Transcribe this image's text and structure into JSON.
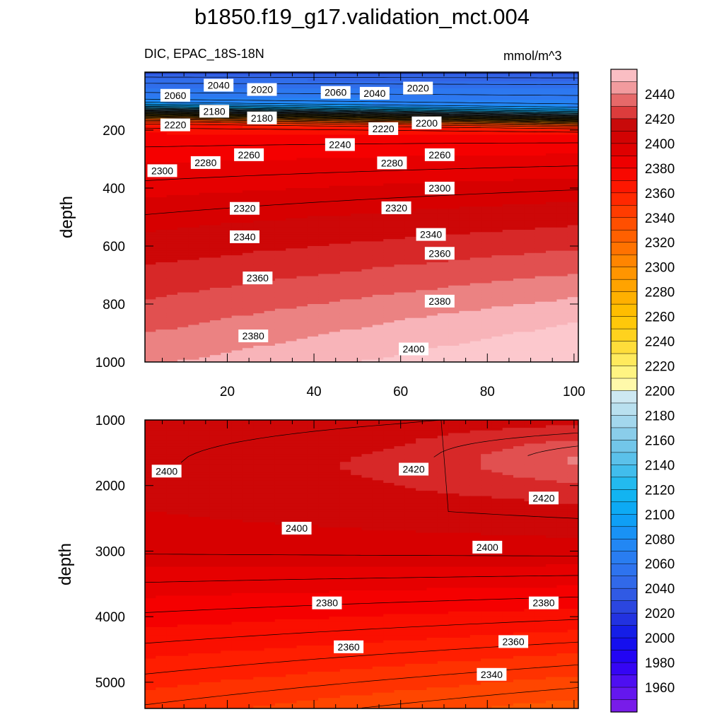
{
  "figure": {
    "title": "b1850.f19_g17.validation_mct.004",
    "variable_label": "DIC, EPAC_18S-18N",
    "units": "mmol/m^3"
  },
  "chart_data": [
    {
      "type": "contour",
      "panel": "upper",
      "xlim": [
        1,
        101
      ],
      "ylim": [
        1000,
        0
      ],
      "ylabel": "depth",
      "x_ticks": [
        20,
        40,
        60,
        80,
        100
      ],
      "x_tick_labels": [
        "20",
        "40",
        "60",
        "80",
        "100"
      ],
      "y_ticks": [
        200,
        400,
        600,
        800,
        1000
      ],
      "y_tick_labels": [
        "200",
        "400",
        "600",
        "800",
        "1000"
      ],
      "contour_labels": [
        {
          "text": "2060",
          "x": 8,
          "y": 80
        },
        {
          "text": "2040",
          "x": 18,
          "y": 45
        },
        {
          "text": "2020",
          "x": 28,
          "y": 60
        },
        {
          "text": "2060",
          "x": 45,
          "y": 70
        },
        {
          "text": "2040",
          "x": 54,
          "y": 73
        },
        {
          "text": "2020",
          "x": 64,
          "y": 55
        },
        {
          "text": "2180",
          "x": 17,
          "y": 135
        },
        {
          "text": "2180",
          "x": 28,
          "y": 158
        },
        {
          "text": "2220",
          "x": 8,
          "y": 182
        },
        {
          "text": "2240",
          "x": 46,
          "y": 250
        },
        {
          "text": "2220",
          "x": 56,
          "y": 195
        },
        {
          "text": "2200",
          "x": 66,
          "y": 175
        },
        {
          "text": "2260",
          "x": 25,
          "y": 285
        },
        {
          "text": "2280",
          "x": 15,
          "y": 312
        },
        {
          "text": "2300",
          "x": 5,
          "y": 340
        },
        {
          "text": "2280",
          "x": 58,
          "y": 313
        },
        {
          "text": "2260",
          "x": 69,
          "y": 285
        },
        {
          "text": "2300",
          "x": 69,
          "y": 400
        },
        {
          "text": "2320",
          "x": 24,
          "y": 470
        },
        {
          "text": "2320",
          "x": 59,
          "y": 468
        },
        {
          "text": "2340",
          "x": 24,
          "y": 568
        },
        {
          "text": "2340",
          "x": 67,
          "y": 560
        },
        {
          "text": "2360",
          "x": 27,
          "y": 710
        },
        {
          "text": "2360",
          "x": 69,
          "y": 625
        },
        {
          "text": "2380",
          "x": 69,
          "y": 790
        },
        {
          "text": "2380",
          "x": 26,
          "y": 910
        },
        {
          "text": "2400",
          "x": 63,
          "y": 955
        }
      ]
    },
    {
      "type": "contour",
      "panel": "lower",
      "xlim": [
        1,
        101
      ],
      "ylim": [
        5400,
        1000
      ],
      "ylabel": "depth",
      "y_ticks": [
        1000,
        2000,
        3000,
        4000,
        5000
      ],
      "y_tick_labels": [
        "1000",
        "2000",
        "3000",
        "4000",
        "5000"
      ],
      "contour_labels": [
        {
          "text": "2400",
          "x": 6,
          "y": 1780
        },
        {
          "text": "2420",
          "x": 63,
          "y": 1750
        },
        {
          "text": "2420",
          "x": 93,
          "y": 2190
        },
        {
          "text": "2400",
          "x": 36,
          "y": 2650
        },
        {
          "text": "2400",
          "x": 80,
          "y": 2940
        },
        {
          "text": "2380",
          "x": 43,
          "y": 3790
        },
        {
          "text": "2380",
          "x": 93,
          "y": 3790
        },
        {
          "text": "2360",
          "x": 48,
          "y": 4460
        },
        {
          "text": "2360",
          "x": 86,
          "y": 4380
        },
        {
          "text": "2340",
          "x": 81,
          "y": 4880
        }
      ]
    },
    {
      "type": "colorbar",
      "levels_min": 1940,
      "levels_max": 2460,
      "level_step": 10,
      "tick_labels": [
        "1960",
        "1980",
        "2000",
        "2020",
        "2040",
        "2060",
        "2080",
        "2100",
        "2120",
        "2140",
        "2160",
        "2180",
        "2200",
        "2220",
        "2240",
        "2260",
        "2280",
        "2300",
        "2320",
        "2340",
        "2360",
        "2380",
        "2400",
        "2420",
        "2440"
      ]
    }
  ]
}
